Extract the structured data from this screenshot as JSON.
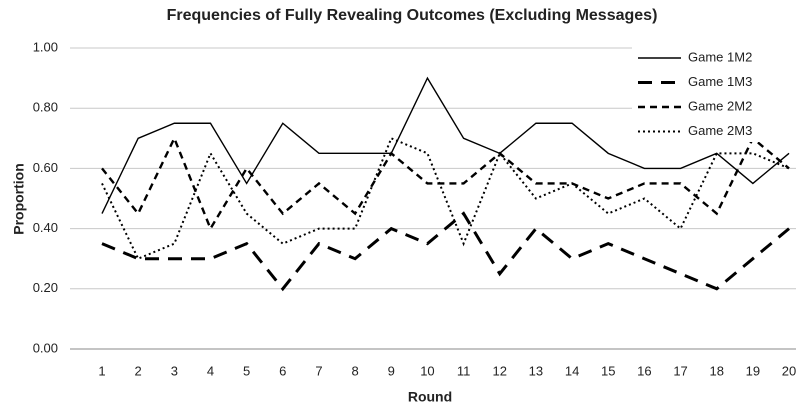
{
  "chart_data": {
    "type": "line",
    "title": "Frequencies of Fully Revealing Outcomes (Excluding Messages)",
    "x_label": "Round",
    "y_label": "Proportion",
    "categories": [
      "1",
      "2",
      "3",
      "4",
      "5",
      "6",
      "7",
      "8",
      "9",
      "10",
      "11",
      "12",
      "13",
      "14",
      "15",
      "16",
      "17",
      "18",
      "19",
      "20"
    ],
    "series": [
      {
        "name": "Game 1M2",
        "color": "#000000",
        "dash": "solid",
        "values": [
          0.45,
          0.7,
          0.75,
          0.75,
          0.55,
          0.75,
          0.65,
          0.65,
          0.65,
          0.9,
          0.7,
          0.65,
          0.75,
          0.75,
          0.65,
          0.6,
          0.6,
          0.65,
          0.55,
          0.65
        ]
      },
      {
        "name": "Game 1M3",
        "color": "#000000",
        "dash": "long",
        "values": [
          0.35,
          0.3,
          0.3,
          0.3,
          0.35,
          0.2,
          0.35,
          0.3,
          0.4,
          0.35,
          0.45,
          0.25,
          0.4,
          0.3,
          0.35,
          0.3,
          0.25,
          0.2,
          0.3,
          0.4
        ]
      },
      {
        "name": "Game 2M2",
        "color": "#000000",
        "dash": "short",
        "values": [
          0.6,
          0.45,
          0.7,
          0.4,
          0.6,
          0.45,
          0.55,
          0.45,
          0.65,
          0.55,
          0.55,
          0.65,
          0.55,
          0.55,
          0.5,
          0.55,
          0.55,
          0.45,
          0.7,
          0.6
        ]
      },
      {
        "name": "Game 2M3",
        "color": "#000000",
        "dash": "dotted",
        "values": [
          0.55,
          0.3,
          0.35,
          0.65,
          0.45,
          0.35,
          0.4,
          0.4,
          0.7,
          0.65,
          0.35,
          0.65,
          0.5,
          0.55,
          0.45,
          0.5,
          0.4,
          0.65,
          0.65,
          0.6
        ]
      }
    ],
    "ylim": [
      0,
      1
    ],
    "yticks": [
      {
        "value": 0,
        "label": "0.00"
      },
      {
        "value": 0.2,
        "label": "0.20"
      },
      {
        "value": 0.4,
        "label": "0.40"
      },
      {
        "value": 0.6,
        "label": "0.60"
      },
      {
        "value": 0.8,
        "label": "0.80"
      },
      {
        "value": 1,
        "label": "1.00"
      }
    ],
    "grid": true,
    "legend": "top-right"
  }
}
